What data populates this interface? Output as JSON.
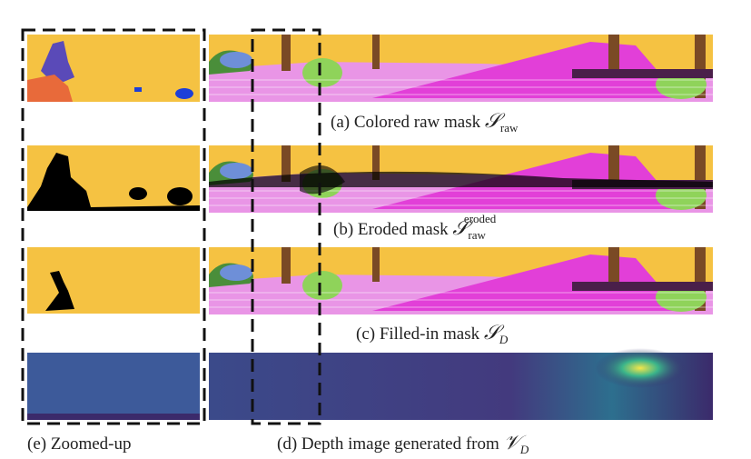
{
  "figure": {
    "captions": [
      {
        "label": "(a) Colored raw mask",
        "symbol": "𝒮",
        "sub": "raw"
      },
      {
        "label": "(b) Eroded mask",
        "symbol": "𝒮",
        "sub": "raw",
        "sup": "eroded"
      },
      {
        "label": "(c) Filled-in mask",
        "symbol": "𝒮",
        "sub": "D"
      },
      {
        "label": "(d) Depth image generated from",
        "symbol": "𝒱",
        "sub": "D"
      },
      {
        "label": "(e) Zoomed-up"
      }
    ]
  }
}
